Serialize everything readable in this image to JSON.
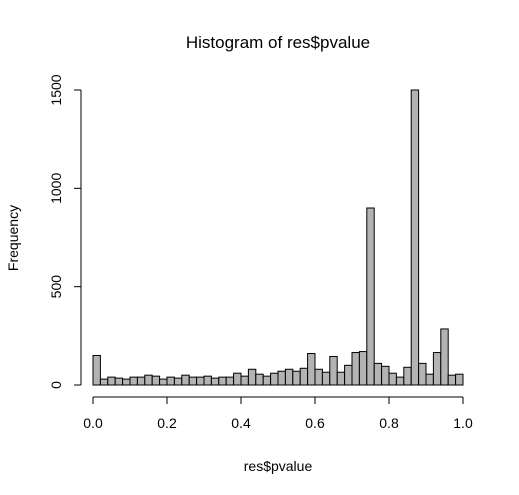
{
  "chart_data": {
    "type": "bar",
    "title": "Histogram of res$pvalue",
    "xlabel": "res$pvalue",
    "ylabel": "Frequency",
    "xlim": [
      0,
      1
    ],
    "ylim": [
      0,
      1500
    ],
    "x_ticks": [
      "0.0",
      "0.2",
      "0.4",
      "0.6",
      "0.8",
      "1.0"
    ],
    "y_ticks": [
      "0",
      "500",
      "1000",
      "1500"
    ],
    "bin_width": 0.02,
    "bin_starts": [
      0.0,
      0.02,
      0.04,
      0.06,
      0.08,
      0.1,
      0.12,
      0.14,
      0.16,
      0.18,
      0.2,
      0.22,
      0.24,
      0.26,
      0.28,
      0.3,
      0.32,
      0.34,
      0.36,
      0.38,
      0.4,
      0.42,
      0.44,
      0.46,
      0.48,
      0.5,
      0.52,
      0.54,
      0.56,
      0.58,
      0.6,
      0.62,
      0.64,
      0.66,
      0.68,
      0.7,
      0.72,
      0.74,
      0.76,
      0.78,
      0.8,
      0.82,
      0.84,
      0.86,
      0.88,
      0.9,
      0.92,
      0.94,
      0.96,
      0.98
    ],
    "values": [
      150,
      30,
      40,
      35,
      30,
      40,
      40,
      50,
      45,
      30,
      40,
      35,
      50,
      40,
      40,
      45,
      35,
      40,
      40,
      60,
      45,
      80,
      55,
      45,
      60,
      70,
      80,
      70,
      85,
      160,
      80,
      65,
      145,
      65,
      100,
      165,
      170,
      900,
      110,
      95,
      60,
      40,
      90,
      1500,
      110,
      55,
      165,
      285,
      50,
      55
    ],
    "bar_color": "#b3b3b3",
    "edge_color": "#000000"
  }
}
